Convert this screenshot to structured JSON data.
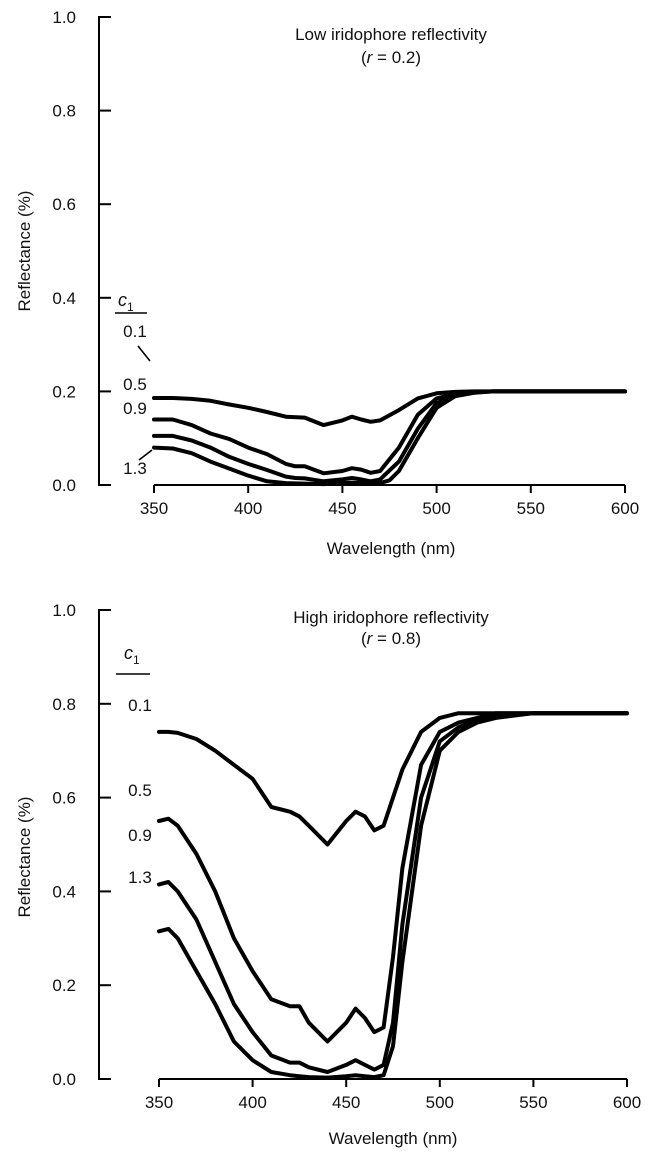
{
  "chart_data": [
    {
      "type": "line",
      "title": "Low iridophore reflectivity",
      "subtitle_parts": {
        "open": "(",
        "var": "r",
        "rest": " = 0.2)"
      },
      "xlabel": "Wavelength (nm)",
      "ylabel": "Reflectance (%)",
      "xlim": [
        350,
        600
      ],
      "ylim": [
        0,
        1.0
      ],
      "xticks": [
        "350",
        "400",
        "450",
        "500",
        "550",
        "600"
      ],
      "yticks": [
        "0.0",
        "0.2",
        "0.4",
        "0.6",
        "0.8",
        "1.0"
      ],
      "legend_header": {
        "var": "c",
        "sub": "1"
      },
      "series": [
        {
          "name": "0.1",
          "x": [
            350,
            360,
            370,
            380,
            390,
            400,
            410,
            420,
            430,
            440,
            450,
            455,
            460,
            465,
            470,
            480,
            490,
            500,
            510,
            520,
            530,
            550,
            600
          ],
          "y": [
            0.186,
            0.186,
            0.184,
            0.18,
            0.172,
            0.165,
            0.156,
            0.146,
            0.144,
            0.128,
            0.138,
            0.146,
            0.14,
            0.135,
            0.138,
            0.16,
            0.185,
            0.196,
            0.199,
            0.2,
            0.2,
            0.2,
            0.2
          ]
        },
        {
          "name": "0.5",
          "x": [
            350,
            360,
            370,
            380,
            390,
            400,
            410,
            420,
            425,
            430,
            440,
            450,
            455,
            460,
            465,
            470,
            480,
            490,
            500,
            510,
            520,
            530,
            550,
            600
          ],
          "y": [
            0.14,
            0.14,
            0.128,
            0.11,
            0.098,
            0.08,
            0.066,
            0.045,
            0.04,
            0.04,
            0.025,
            0.03,
            0.036,
            0.033,
            0.026,
            0.03,
            0.08,
            0.15,
            0.185,
            0.195,
            0.199,
            0.2,
            0.2,
            0.2
          ]
        },
        {
          "name": "0.9",
          "x": [
            350,
            360,
            370,
            380,
            390,
            400,
            410,
            420,
            425,
            430,
            440,
            450,
            455,
            460,
            465,
            470,
            480,
            490,
            500,
            510,
            520,
            530,
            550,
            600
          ],
          "y": [
            0.105,
            0.105,
            0.095,
            0.08,
            0.06,
            0.045,
            0.032,
            0.018,
            0.015,
            0.014,
            0.008,
            0.012,
            0.015,
            0.012,
            0.008,
            0.012,
            0.05,
            0.12,
            0.175,
            0.192,
            0.198,
            0.2,
            0.2,
            0.2
          ]
        },
        {
          "name": "1.3",
          "x": [
            350,
            360,
            370,
            380,
            390,
            400,
            410,
            420,
            430,
            440,
            450,
            455,
            460,
            470,
            475,
            480,
            490,
            500,
            510,
            520,
            530,
            550,
            600
          ],
          "y": [
            0.08,
            0.078,
            0.068,
            0.05,
            0.035,
            0.02,
            0.008,
            0.004,
            0.003,
            0.002,
            0.004,
            0.005,
            0.004,
            0.004,
            0.01,
            0.03,
            0.1,
            0.165,
            0.19,
            0.197,
            0.2,
            0.2,
            0.2
          ]
        }
      ]
    },
    {
      "type": "line",
      "title": "High iridophore reflectivity",
      "subtitle_parts": {
        "open": "(",
        "var": "r",
        "rest": " = 0.8)"
      },
      "xlabel": "Wavelength (nm)",
      "ylabel": "Reflectance (%)",
      "xlim": [
        350,
        600
      ],
      "ylim": [
        0,
        1.0
      ],
      "xticks": [
        "350",
        "400",
        "450",
        "500",
        "550",
        "600"
      ],
      "yticks": [
        "0.0",
        "0.2",
        "0.4",
        "0.6",
        "0.8",
        "1.0"
      ],
      "legend_header": {
        "var": "c",
        "sub": "1"
      },
      "series": [
        {
          "name": "0.1",
          "x": [
            350,
            355,
            360,
            370,
            380,
            390,
            400,
            410,
            420,
            425,
            430,
            440,
            450,
            455,
            460,
            465,
            470,
            475,
            480,
            490,
            500,
            510,
            520,
            530,
            550,
            600
          ],
          "y": [
            0.74,
            0.74,
            0.738,
            0.725,
            0.7,
            0.67,
            0.64,
            0.58,
            0.57,
            0.56,
            0.54,
            0.5,
            0.55,
            0.57,
            0.56,
            0.53,
            0.54,
            0.6,
            0.66,
            0.74,
            0.77,
            0.78,
            0.78,
            0.78,
            0.78,
            0.78
          ]
        },
        {
          "name": "0.5",
          "x": [
            350,
            355,
            360,
            370,
            380,
            390,
            400,
            410,
            420,
            425,
            430,
            440,
            450,
            455,
            460,
            465,
            470,
            475,
            480,
            490,
            500,
            510,
            520,
            530,
            550,
            600
          ],
          "y": [
            0.55,
            0.555,
            0.54,
            0.48,
            0.4,
            0.3,
            0.23,
            0.17,
            0.155,
            0.155,
            0.12,
            0.08,
            0.12,
            0.15,
            0.13,
            0.1,
            0.11,
            0.26,
            0.45,
            0.67,
            0.74,
            0.76,
            0.77,
            0.78,
            0.78,
            0.78
          ]
        },
        {
          "name": "0.9",
          "x": [
            350,
            355,
            360,
            370,
            380,
            390,
            400,
            410,
            420,
            425,
            430,
            440,
            450,
            455,
            460,
            465,
            470,
            475,
            480,
            490,
            500,
            510,
            520,
            530,
            550,
            600
          ],
          "y": [
            0.415,
            0.42,
            0.4,
            0.34,
            0.25,
            0.16,
            0.1,
            0.05,
            0.035,
            0.035,
            0.025,
            0.015,
            0.03,
            0.04,
            0.03,
            0.02,
            0.03,
            0.12,
            0.33,
            0.6,
            0.72,
            0.75,
            0.765,
            0.775,
            0.78,
            0.78
          ]
        },
        {
          "name": "1.3",
          "x": [
            350,
            355,
            360,
            370,
            380,
            390,
            400,
            410,
            420,
            425,
            430,
            440,
            450,
            455,
            460,
            465,
            470,
            475,
            480,
            490,
            500,
            510,
            520,
            530,
            550,
            600
          ],
          "y": [
            0.315,
            0.32,
            0.3,
            0.23,
            0.16,
            0.08,
            0.04,
            0.015,
            0.008,
            0.006,
            0.004,
            0.003,
            0.006,
            0.008,
            0.006,
            0.004,
            0.008,
            0.07,
            0.25,
            0.54,
            0.7,
            0.74,
            0.76,
            0.77,
            0.78,
            0.78
          ]
        }
      ]
    }
  ]
}
